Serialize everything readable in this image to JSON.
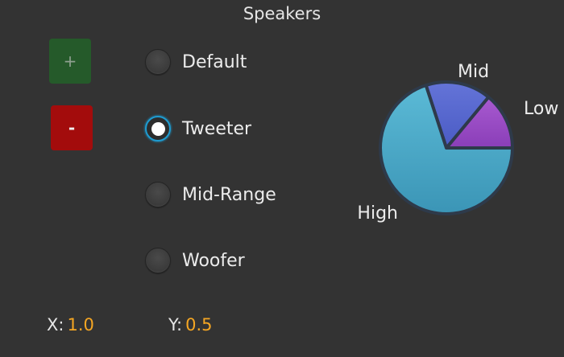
{
  "window": {
    "title": "Speakers"
  },
  "buttons": {
    "add_label": "+",
    "remove_label": "-"
  },
  "speaker_types": [
    {
      "label": "Default",
      "selected": false
    },
    {
      "label": "Tweeter",
      "selected": true
    },
    {
      "label": "Mid-Range",
      "selected": false
    },
    {
      "label": "Woofer",
      "selected": false
    }
  ],
  "readout": {
    "x_label": "X:",
    "x_value": "1.0",
    "y_label": "Y:",
    "y_value": "0.5"
  },
  "colors": {
    "accent": "#1e9bd0",
    "value_text": "#f5a623",
    "add_button": "#255a2a",
    "remove_button": "#a30c0c"
  },
  "chart_data": {
    "type": "pie",
    "slices": [
      {
        "label": "High",
        "value": 70,
        "color": "#4aa8c8"
      },
      {
        "label": "Mid",
        "value": 16,
        "color": "#5a6ed0"
      },
      {
        "label": "Low",
        "value": 14,
        "color": "#9a4ec4"
      }
    ]
  }
}
